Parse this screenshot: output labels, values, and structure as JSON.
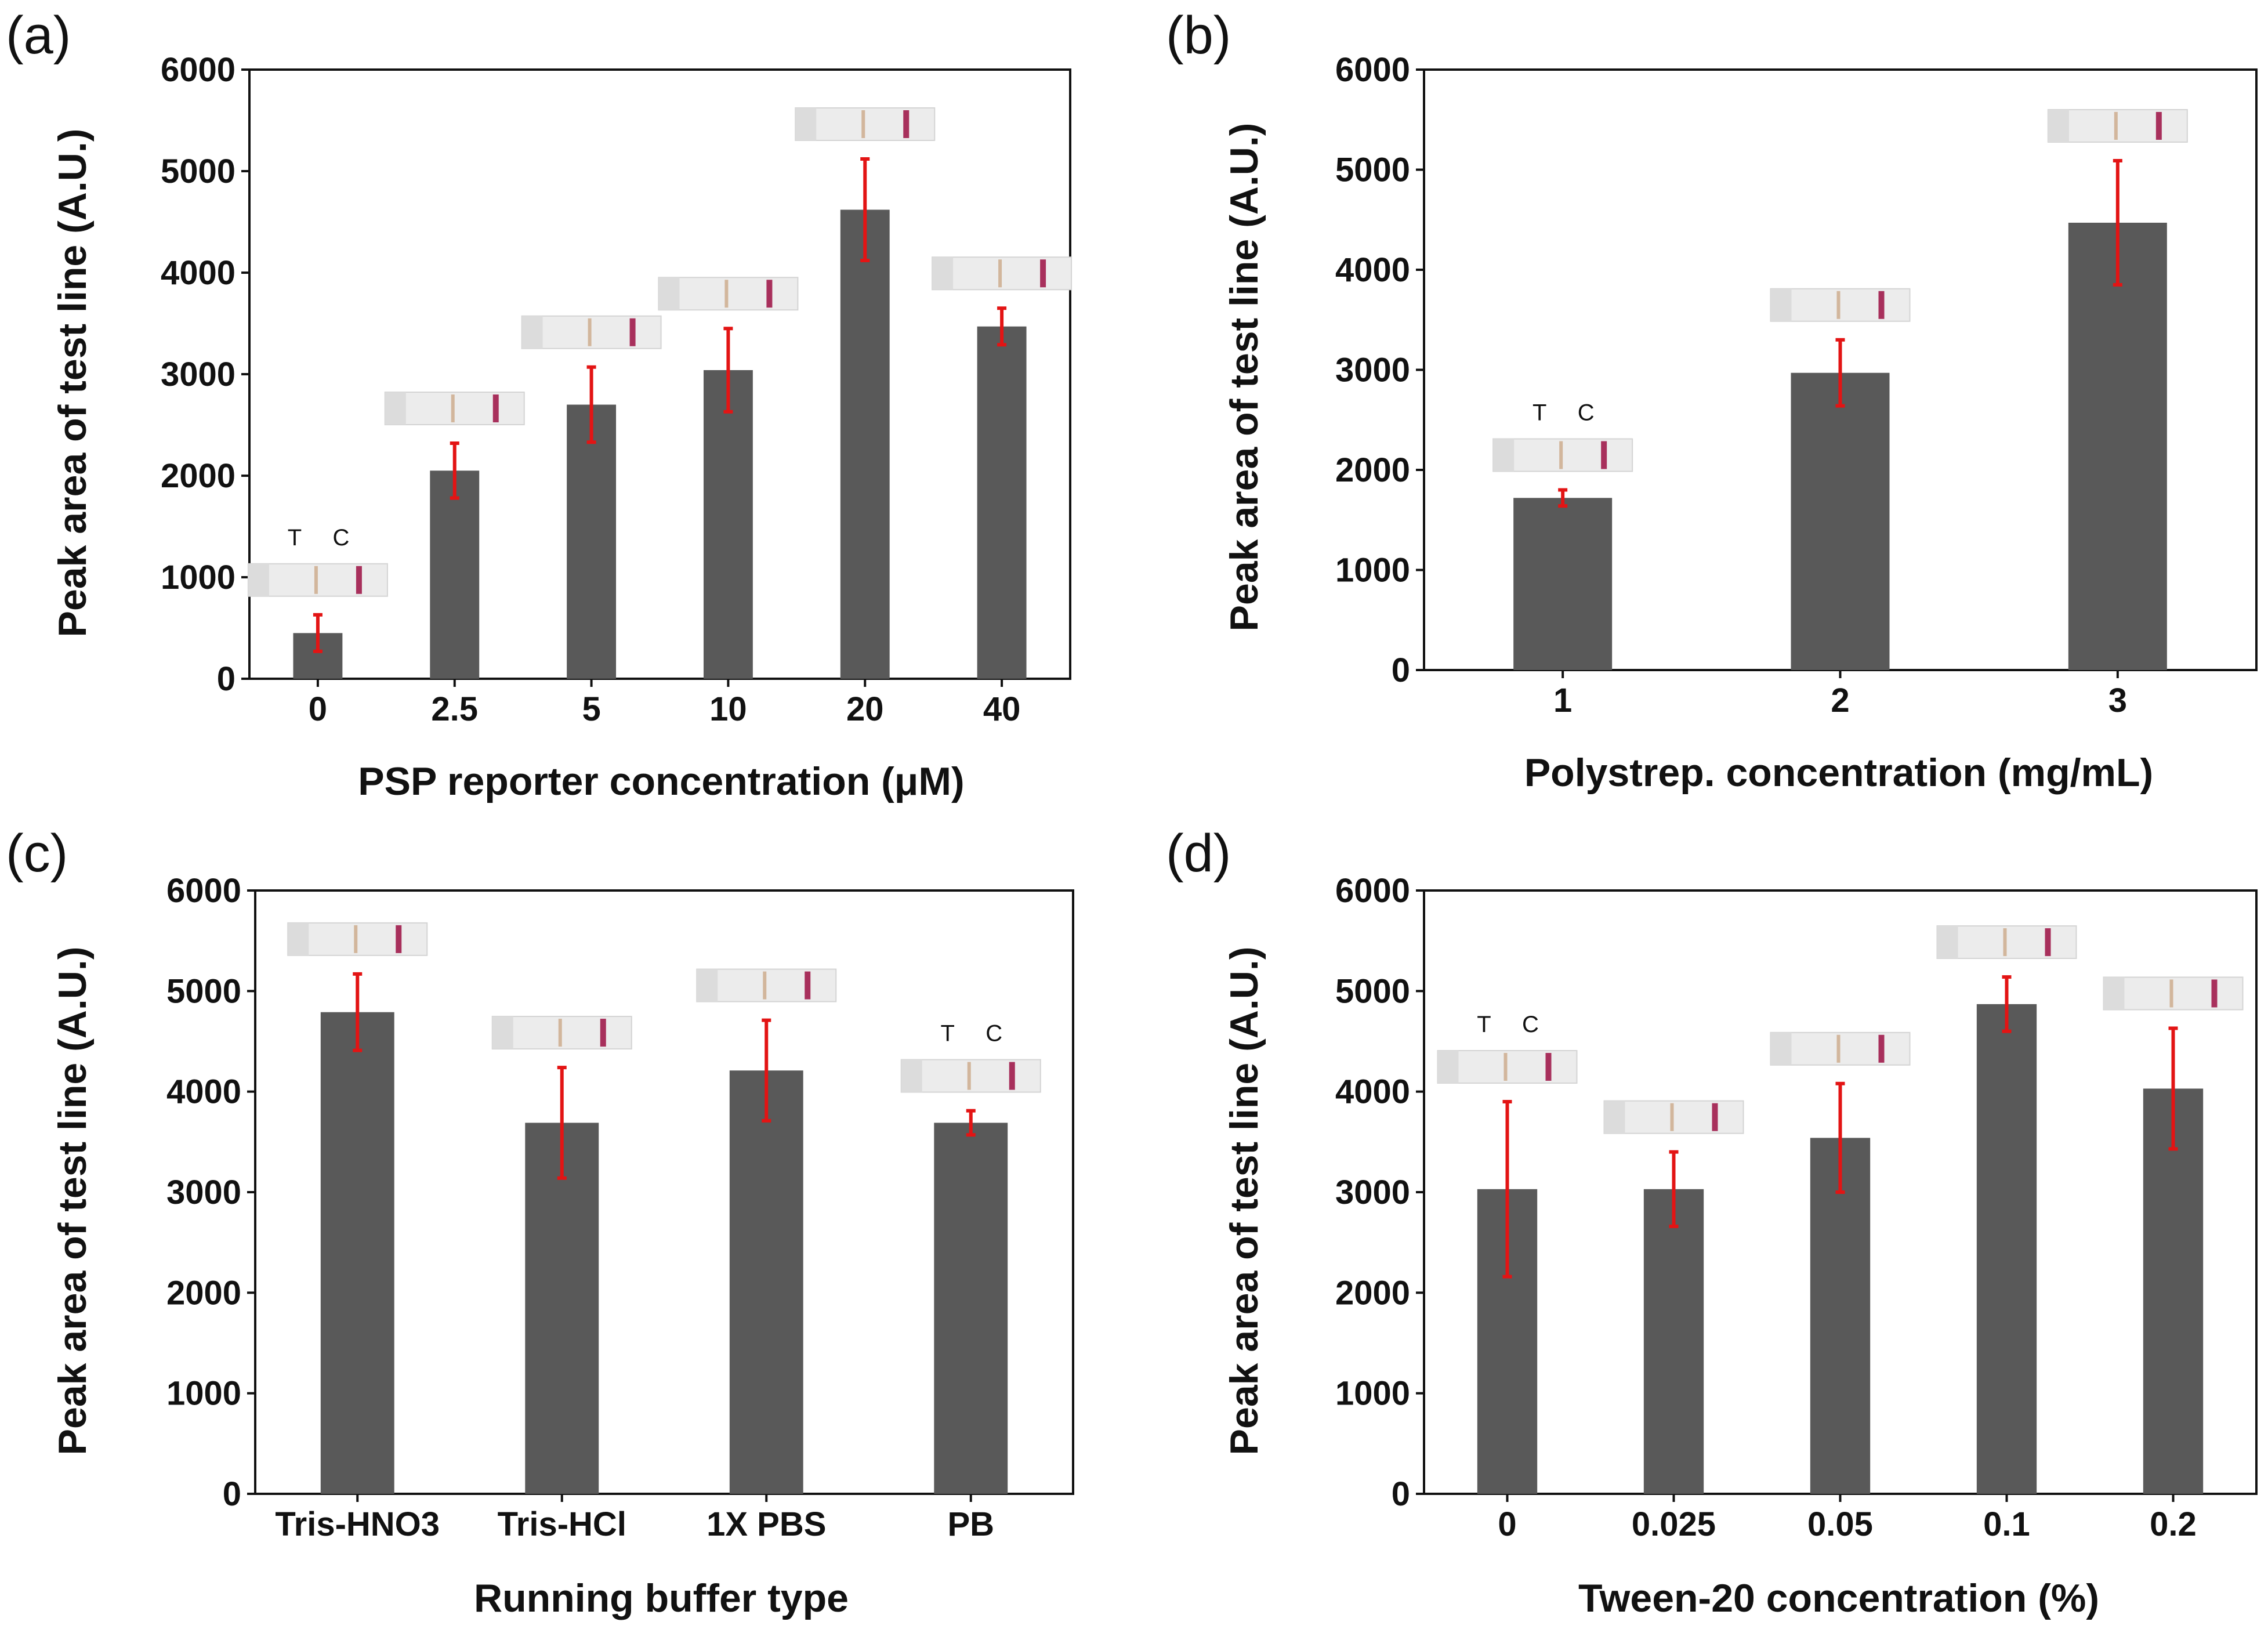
{
  "colors": {
    "bar": "#595959",
    "error": "#e31414",
    "strip": "#ececec",
    "strip_band": "#a8305c",
    "strip_faint": "#c7a07a"
  },
  "chart_data": [
    {
      "panel": "(a)",
      "type": "bar",
      "categories": [
        "0",
        "2.5",
        "5",
        "10",
        "20",
        "40"
      ],
      "values": [
        450,
        2050,
        2700,
        3040,
        4620,
        3470
      ],
      "errors": [
        180,
        270,
        370,
        410,
        500,
        180
      ],
      "xlabel": "PSP reporter concentration (μM)",
      "ylabel": "Peak area of test line (A.U.)",
      "ylim": [
        0,
        6000
      ],
      "yticks": [
        0,
        1000,
        2000,
        3000,
        4000,
        5000,
        6000
      ],
      "strip_labels": {
        "category_index": 0,
        "t": "T",
        "c": "C"
      }
    },
    {
      "panel": "(b)",
      "type": "bar",
      "categories": [
        "1",
        "2",
        "3"
      ],
      "values": [
        1720,
        2970,
        4470
      ],
      "errors": [
        80,
        330,
        620
      ],
      "xlabel": "Polystrep. concentration (mg/mL)",
      "ylabel": "Peak area of test line (A.U.)",
      "ylim": [
        0,
        6000
      ],
      "yticks": [
        0,
        1000,
        2000,
        3000,
        4000,
        5000,
        6000
      ],
      "strip_labels": {
        "category_index": 0,
        "t": "T",
        "c": "C"
      }
    },
    {
      "panel": "(c)",
      "type": "bar",
      "categories": [
        "Tris-HNO3",
        "Tris-HCl",
        "1X PBS",
        "PB"
      ],
      "values": [
        4790,
        3690,
        4210,
        3690
      ],
      "errors": [
        380,
        550,
        500,
        120
      ],
      "xlabel": "Running buffer type",
      "ylabel": "Peak area of test line (A.U.)",
      "ylim": [
        0,
        6000
      ],
      "yticks": [
        0,
        1000,
        2000,
        3000,
        4000,
        5000,
        6000
      ],
      "strip_labels": {
        "category_index": 3,
        "t": "T",
        "c": "C"
      }
    },
    {
      "panel": "(d)",
      "type": "bar",
      "categories": [
        "0",
        "0.025",
        "0.05",
        "0.1",
        "0.2"
      ],
      "values": [
        3030,
        3030,
        3540,
        4870,
        4030
      ],
      "errors": [
        870,
        370,
        540,
        270,
        600
      ],
      "xlabel": "Tween-20 concentration (%)",
      "ylabel": "Peak area of test line (A.U.)",
      "ylim": [
        0,
        6000
      ],
      "yticks": [
        0,
        1000,
        2000,
        3000,
        4000,
        5000,
        6000
      ],
      "strip_labels": {
        "category_index": 0,
        "t": "T",
        "c": "C"
      }
    }
  ]
}
